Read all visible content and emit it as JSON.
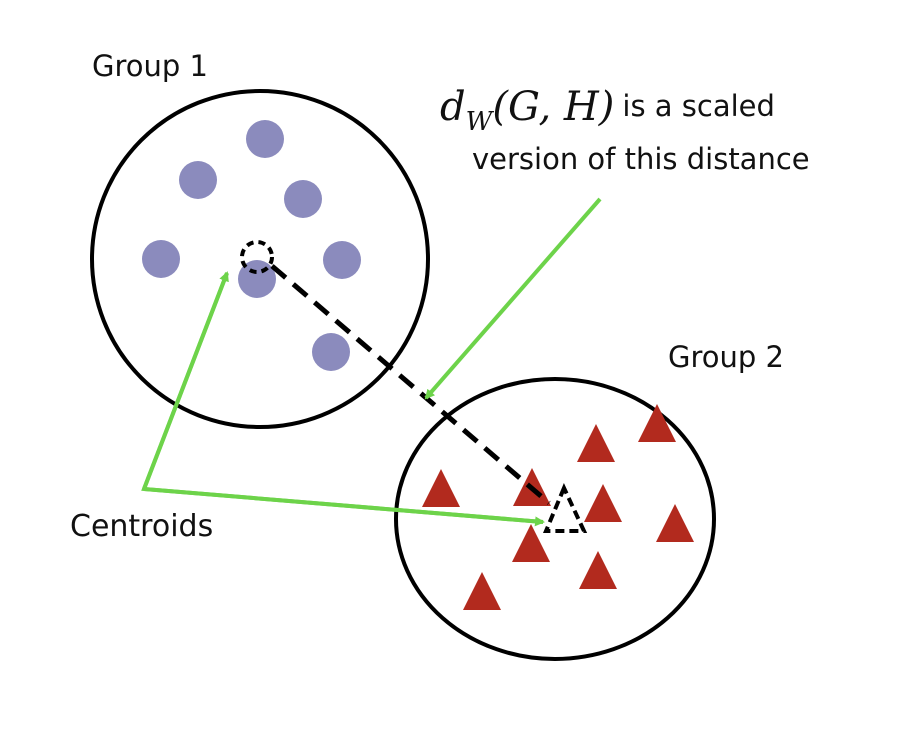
{
  "labels": {
    "group1": "Group 1",
    "group2": "Group 2",
    "centroids": "Centroids",
    "formula_math": "d",
    "formula_sub": "W",
    "formula_args": "(G, H)",
    "formula_text_line1": "is a scaled",
    "formula_text_line2": "version of this distance"
  },
  "colors": {
    "group1_point": "#8b8bbd",
    "group2_point": "#b22a1e",
    "arrow": "#6dd34a",
    "outline": "#000000"
  },
  "icons": {
    "group1_marker": "circle",
    "group2_marker": "triangle",
    "centroid1_marker": "dashed-circle",
    "centroid2_marker": "dashed-triangle"
  }
}
